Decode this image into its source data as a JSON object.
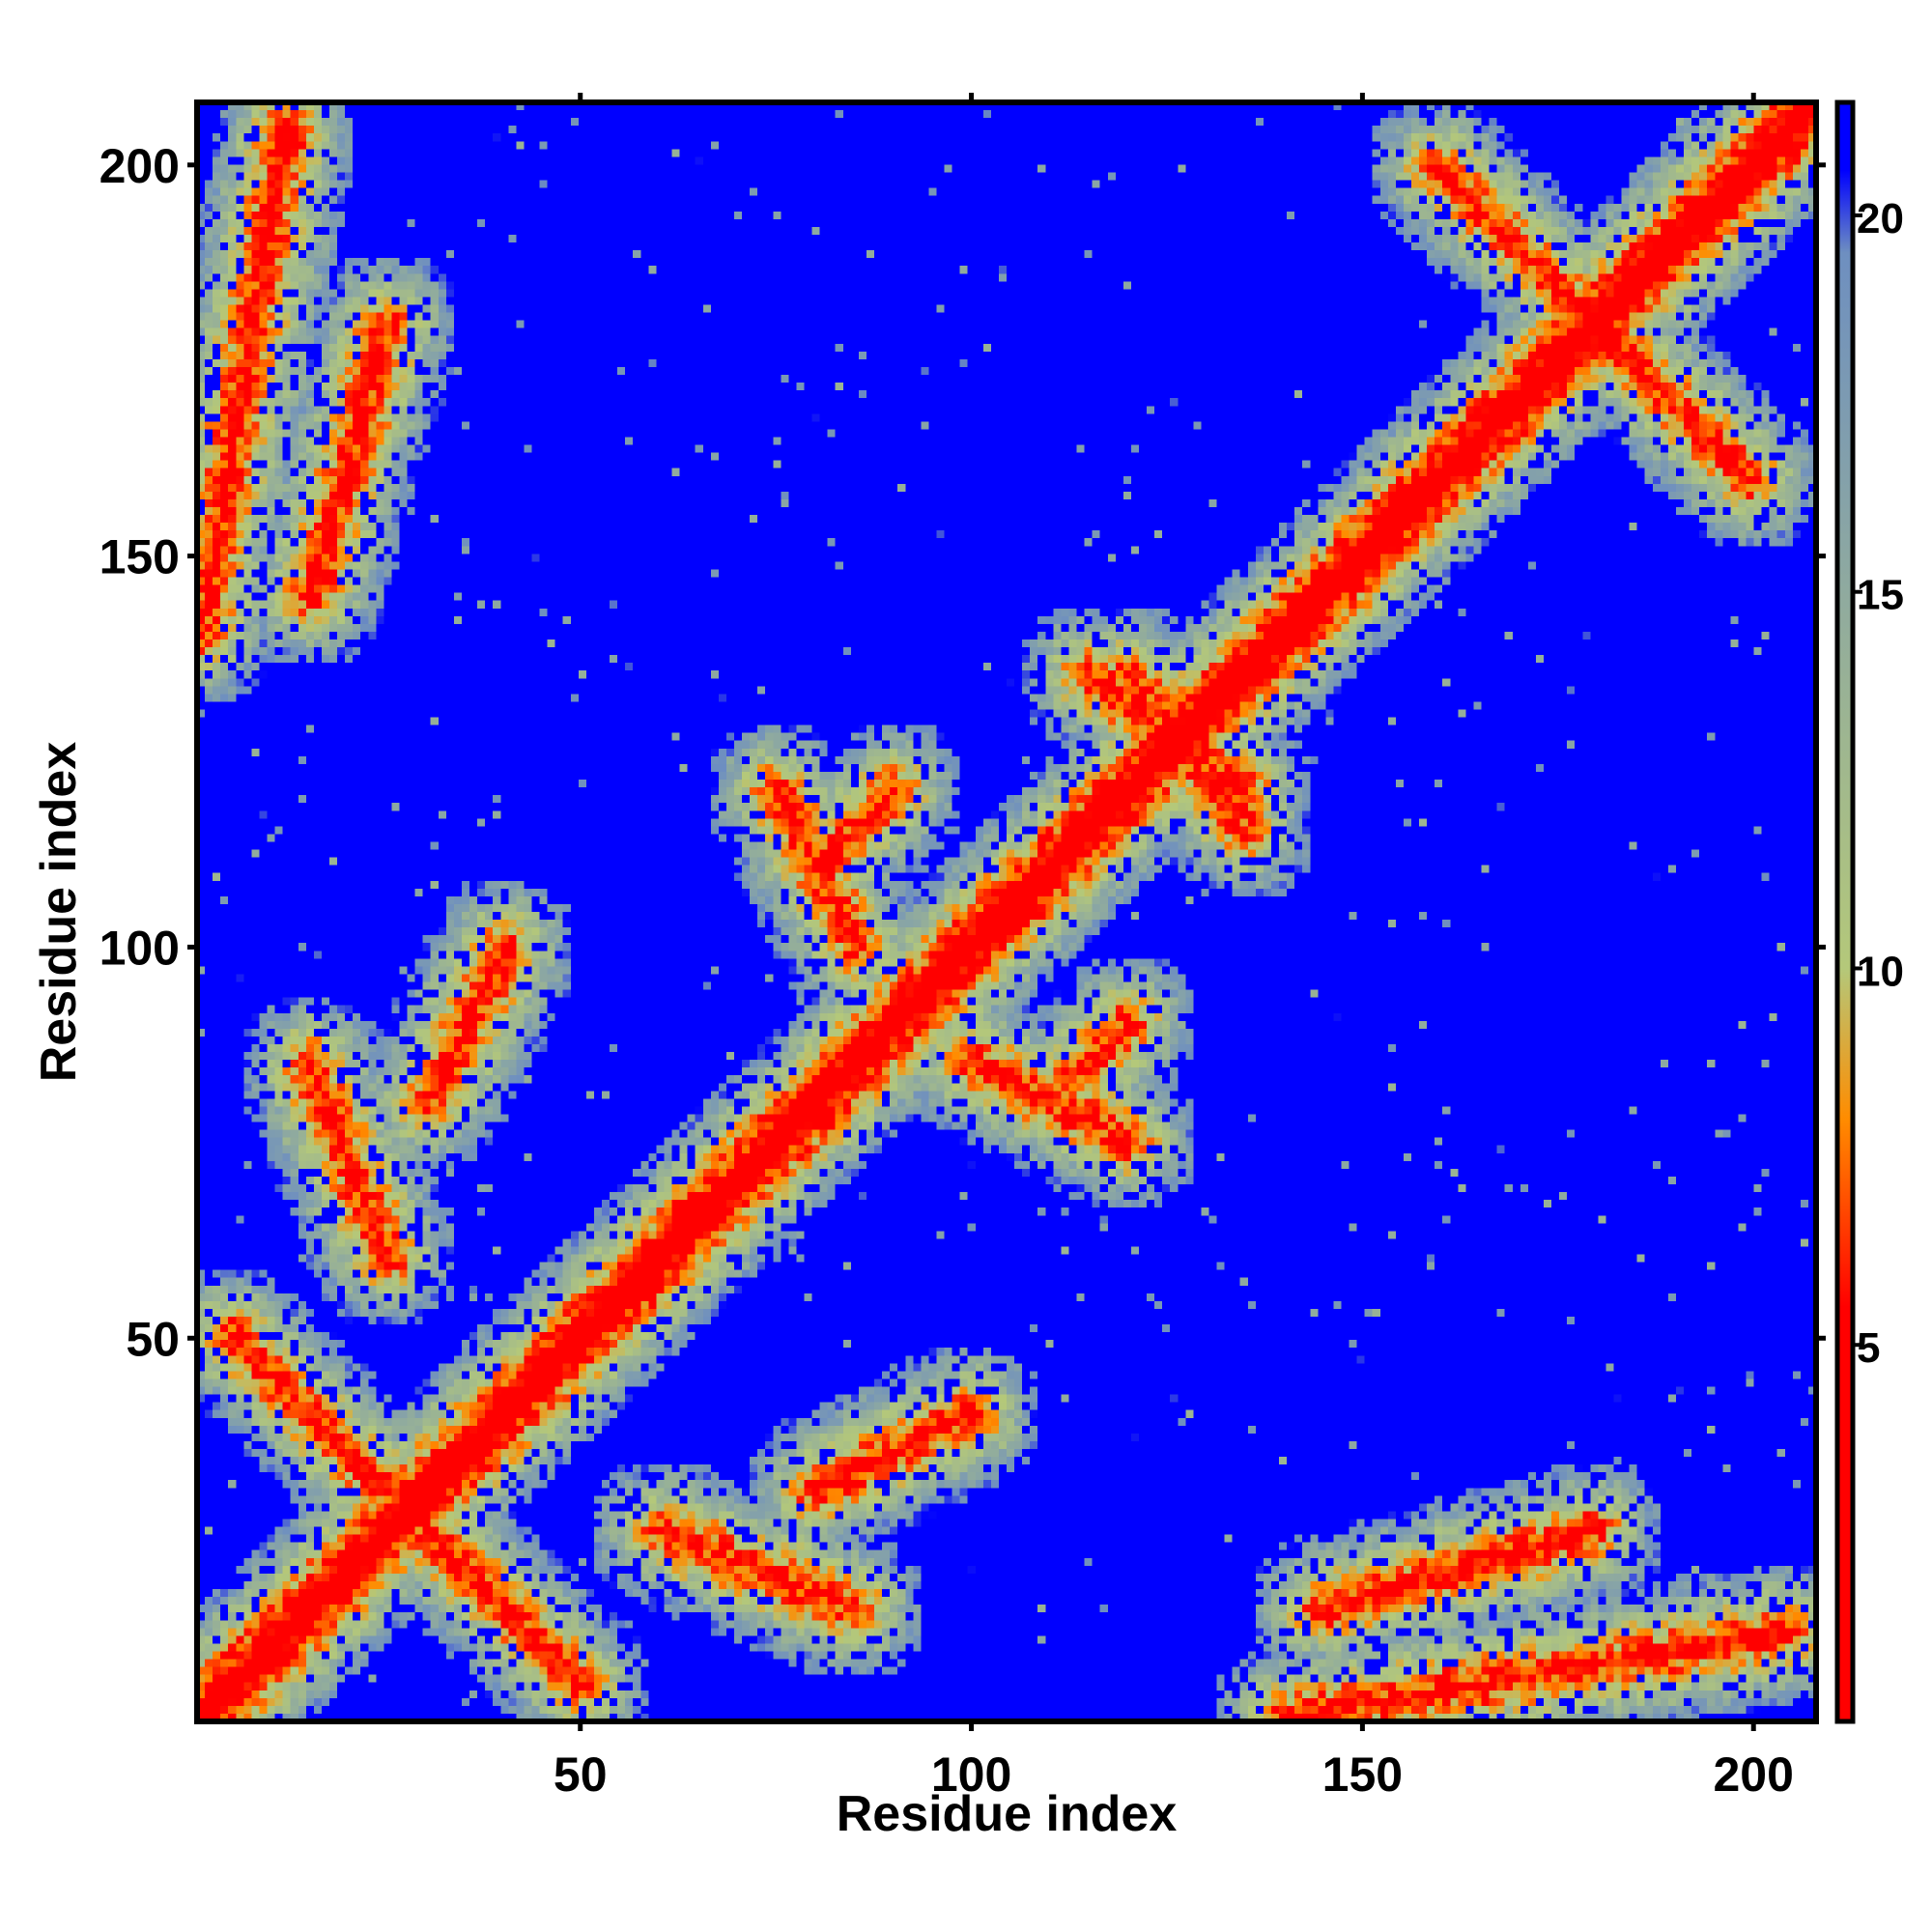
{
  "chart_data": {
    "type": "heatmap",
    "title": "",
    "xlabel": "Residue index",
    "ylabel": "Residue index",
    "xlim": [
      1,
      208
    ],
    "ylim": [
      1,
      208
    ],
    "x_ticks": [
      50,
      100,
      150,
      200
    ],
    "x_tick_labels": [
      "50",
      "100",
      "150",
      "200"
    ],
    "y_ticks": [
      50,
      100,
      150,
      200
    ],
    "y_tick_labels": [
      "50",
      "100",
      "150",
      "200"
    ],
    "colorbar": {
      "range": [
        0,
        21.5
      ],
      "ticks": [
        5,
        10,
        15,
        20
      ],
      "tick_labels": [
        "5",
        "10",
        "15",
        "20"
      ],
      "colors": [
        "#ff0000",
        "#ff8c00",
        "#b4c87a",
        "#6e8fc0",
        "#0000ff"
      ]
    },
    "matrix_size": 208,
    "value_meaning": "inter-residue distance",
    "contact_features": [
      {
        "kind": "diagonal",
        "from": 1,
        "to": 208
      },
      {
        "kind": "parallel",
        "i": [
          140,
          205
        ],
        "j": [
          1,
          12
        ]
      },
      {
        "kind": "parallel",
        "i": [
          145,
          180
        ],
        "j": [
          15,
          25
        ]
      },
      {
        "kind": "antiparallel",
        "i": [
          25,
          50
        ],
        "j": [
          30,
          5
        ]
      },
      {
        "kind": "antiparallel",
        "i": [
          30,
          40
        ],
        "j": [
          80,
          100
        ]
      },
      {
        "kind": "antiparallel",
        "i": [
          60,
          85
        ],
        "j": [
          25,
          15
        ]
      },
      {
        "kind": "antiparallel",
        "i": [
          80,
          90
        ],
        "j": [
          110,
          120
        ]
      },
      {
        "kind": "antiparallel",
        "i": [
          100,
          120
        ],
        "j": [
          85,
          75
        ]
      },
      {
        "kind": "antiparallel",
        "i": [
          115,
          135
        ],
        "j": [
          135,
          120
        ]
      },
      {
        "kind": "antiparallel",
        "i": [
          160,
          200
        ],
        "j": [
          200,
          160
        ]
      }
    ]
  }
}
